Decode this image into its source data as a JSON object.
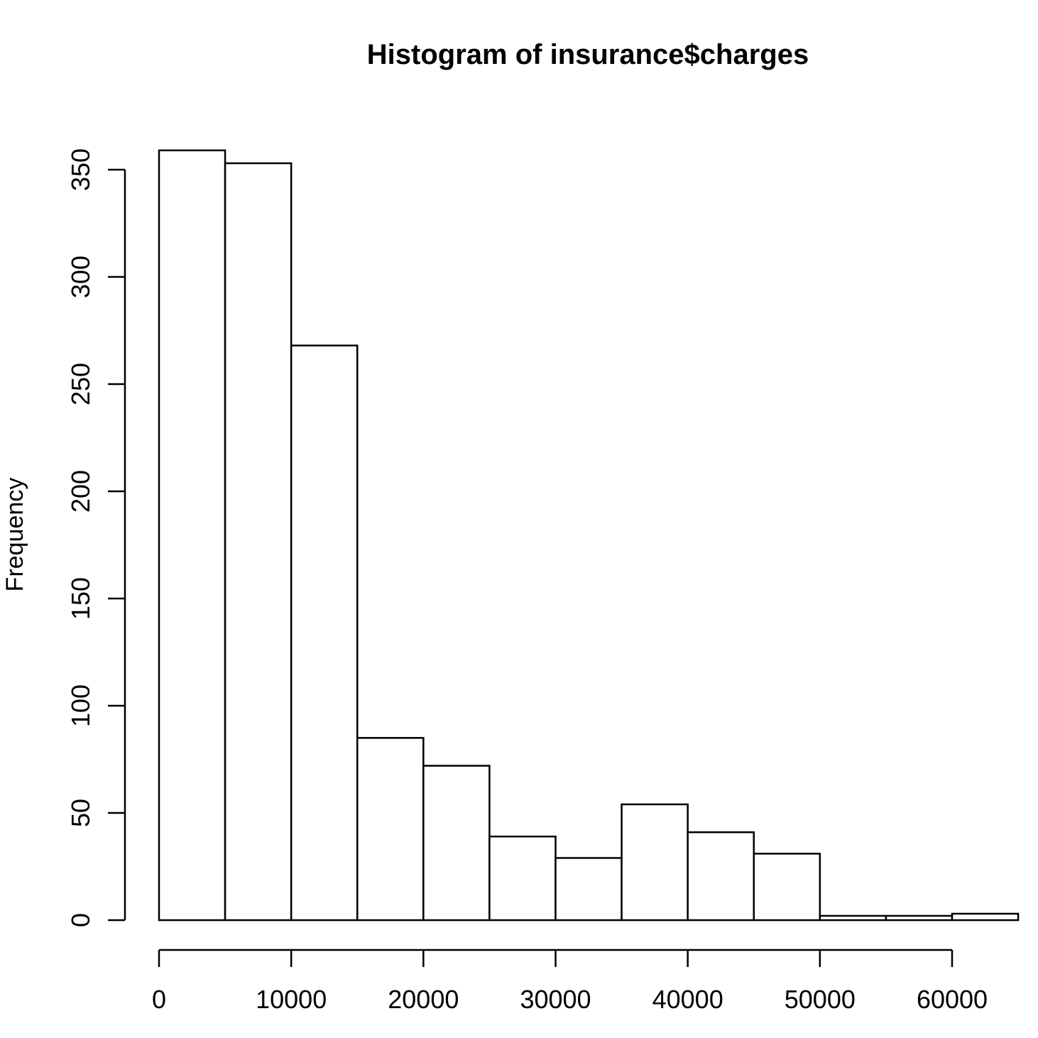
{
  "chart_data": {
    "type": "bar",
    "title": "Histogram of insurance$charges",
    "xlabel": "",
    "ylabel": "Frequency",
    "bins": [
      {
        "from": 0,
        "to": 5000,
        "count": 359
      },
      {
        "from": 5000,
        "to": 10000,
        "count": 353
      },
      {
        "from": 10000,
        "to": 15000,
        "count": 268
      },
      {
        "from": 15000,
        "to": 20000,
        "count": 85
      },
      {
        "from": 20000,
        "to": 25000,
        "count": 72
      },
      {
        "from": 25000,
        "to": 30000,
        "count": 39
      },
      {
        "from": 30000,
        "to": 35000,
        "count": 29
      },
      {
        "from": 35000,
        "to": 40000,
        "count": 54
      },
      {
        "from": 40000,
        "to": 45000,
        "count": 41
      },
      {
        "from": 45000,
        "to": 50000,
        "count": 31
      },
      {
        "from": 50000,
        "to": 55000,
        "count": 2
      },
      {
        "from": 55000,
        "to": 60000,
        "count": 2
      },
      {
        "from": 60000,
        "to": 65000,
        "count": 3
      }
    ],
    "xticks": [
      0,
      10000,
      20000,
      30000,
      40000,
      50000,
      60000
    ],
    "yticks": [
      0,
      50,
      100,
      150,
      200,
      250,
      300,
      350
    ],
    "xlim": [
      0,
      65000
    ],
    "ylim": [
      0,
      350
    ],
    "grid": false,
    "legend": "none",
    "colors": {
      "bar_fill": "#ffffff",
      "bar_stroke": "#000000"
    }
  }
}
